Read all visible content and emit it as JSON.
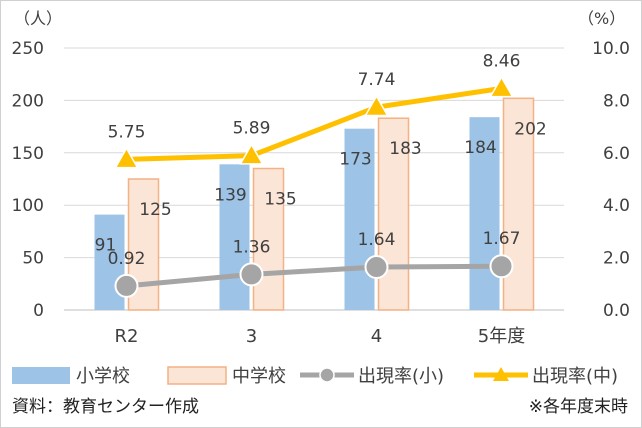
{
  "chart_data": {
    "type": "bar",
    "categories": [
      "R2",
      "3",
      "4",
      "5年度"
    ],
    "series": [
      {
        "name": "小学校",
        "type": "bar",
        "axis": "left",
        "values": [
          91,
          139,
          173,
          184
        ],
        "labels": [
          "91",
          "139",
          "173",
          "184"
        ],
        "color": "#9dc3e6"
      },
      {
        "name": "中学校",
        "type": "bar",
        "axis": "left",
        "values": [
          125,
          135,
          183,
          202
        ],
        "labels": [
          "125",
          "135",
          "183",
          "202"
        ],
        "color": "#fbe5d6",
        "stroke": "#f4b183"
      },
      {
        "name": "出現率(小)",
        "type": "line",
        "axis": "right",
        "values": [
          0.92,
          1.36,
          1.64,
          1.67
        ],
        "labels": [
          "0.92",
          "1.36",
          "1.64",
          "1.67"
        ],
        "color": "#a5a5a5"
      },
      {
        "name": "出現率(中)",
        "type": "line",
        "axis": "right",
        "values": [
          5.75,
          5.89,
          7.74,
          8.46
        ],
        "labels": [
          "5.75",
          "5.89",
          "7.74",
          "8.46"
        ],
        "color": "#ffc000"
      }
    ],
    "left_axis": {
      "unit": "（人）",
      "min": 0,
      "max": 250,
      "ticks": [
        "0",
        "50",
        "100",
        "150",
        "200",
        "250"
      ]
    },
    "right_axis": {
      "unit": "（%）",
      "min": 0,
      "max": 10,
      "ticks": [
        "0.0",
        "2.0",
        "4.0",
        "6.0",
        "8.0",
        "10.0"
      ]
    },
    "gridlines": true,
    "legend_position": "bottom"
  },
  "footer": {
    "source": "資料：教育センター作成",
    "note": "※各年度末時"
  }
}
